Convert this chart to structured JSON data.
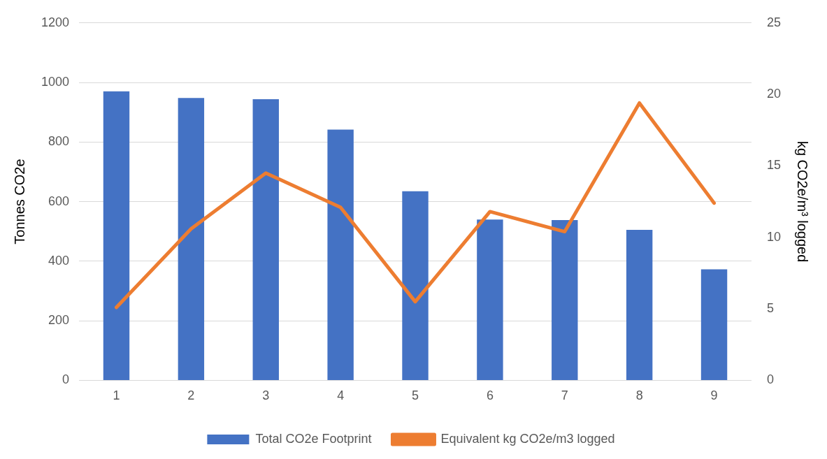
{
  "chart_data": {
    "type": "bar",
    "ylabel": "Tonnes CO2e",
    "y2label": "kg CO2e/m³ logged",
    "categories": [
      "1",
      "2",
      "3",
      "4",
      "5",
      "6",
      "7",
      "8",
      "9"
    ],
    "series": [
      {
        "name": "Total CO2e Footprint",
        "color": "#4472c4",
        "values": [
          970,
          948,
          944,
          842,
          635,
          540,
          538,
          505,
          373
        ]
      },
      {
        "name": "Equivalent kg CO2e/m3 logged",
        "type": "line",
        "axis": "y2",
        "color": "#ed7d31",
        "values": [
          5.1,
          10.6,
          14.5,
          12.1,
          5.5,
          11.8,
          10.4,
          19.4,
          12.4
        ]
      }
    ],
    "ylim": [
      0,
      1200
    ],
    "yticks": [
      0,
      200,
      400,
      600,
      800,
      1000,
      1200
    ],
    "y2lim": [
      0,
      25
    ],
    "y2ticks": [
      0,
      5,
      10,
      15,
      20,
      25
    ],
    "grid": "y",
    "legend": "bottom",
    "marker": "none"
  }
}
